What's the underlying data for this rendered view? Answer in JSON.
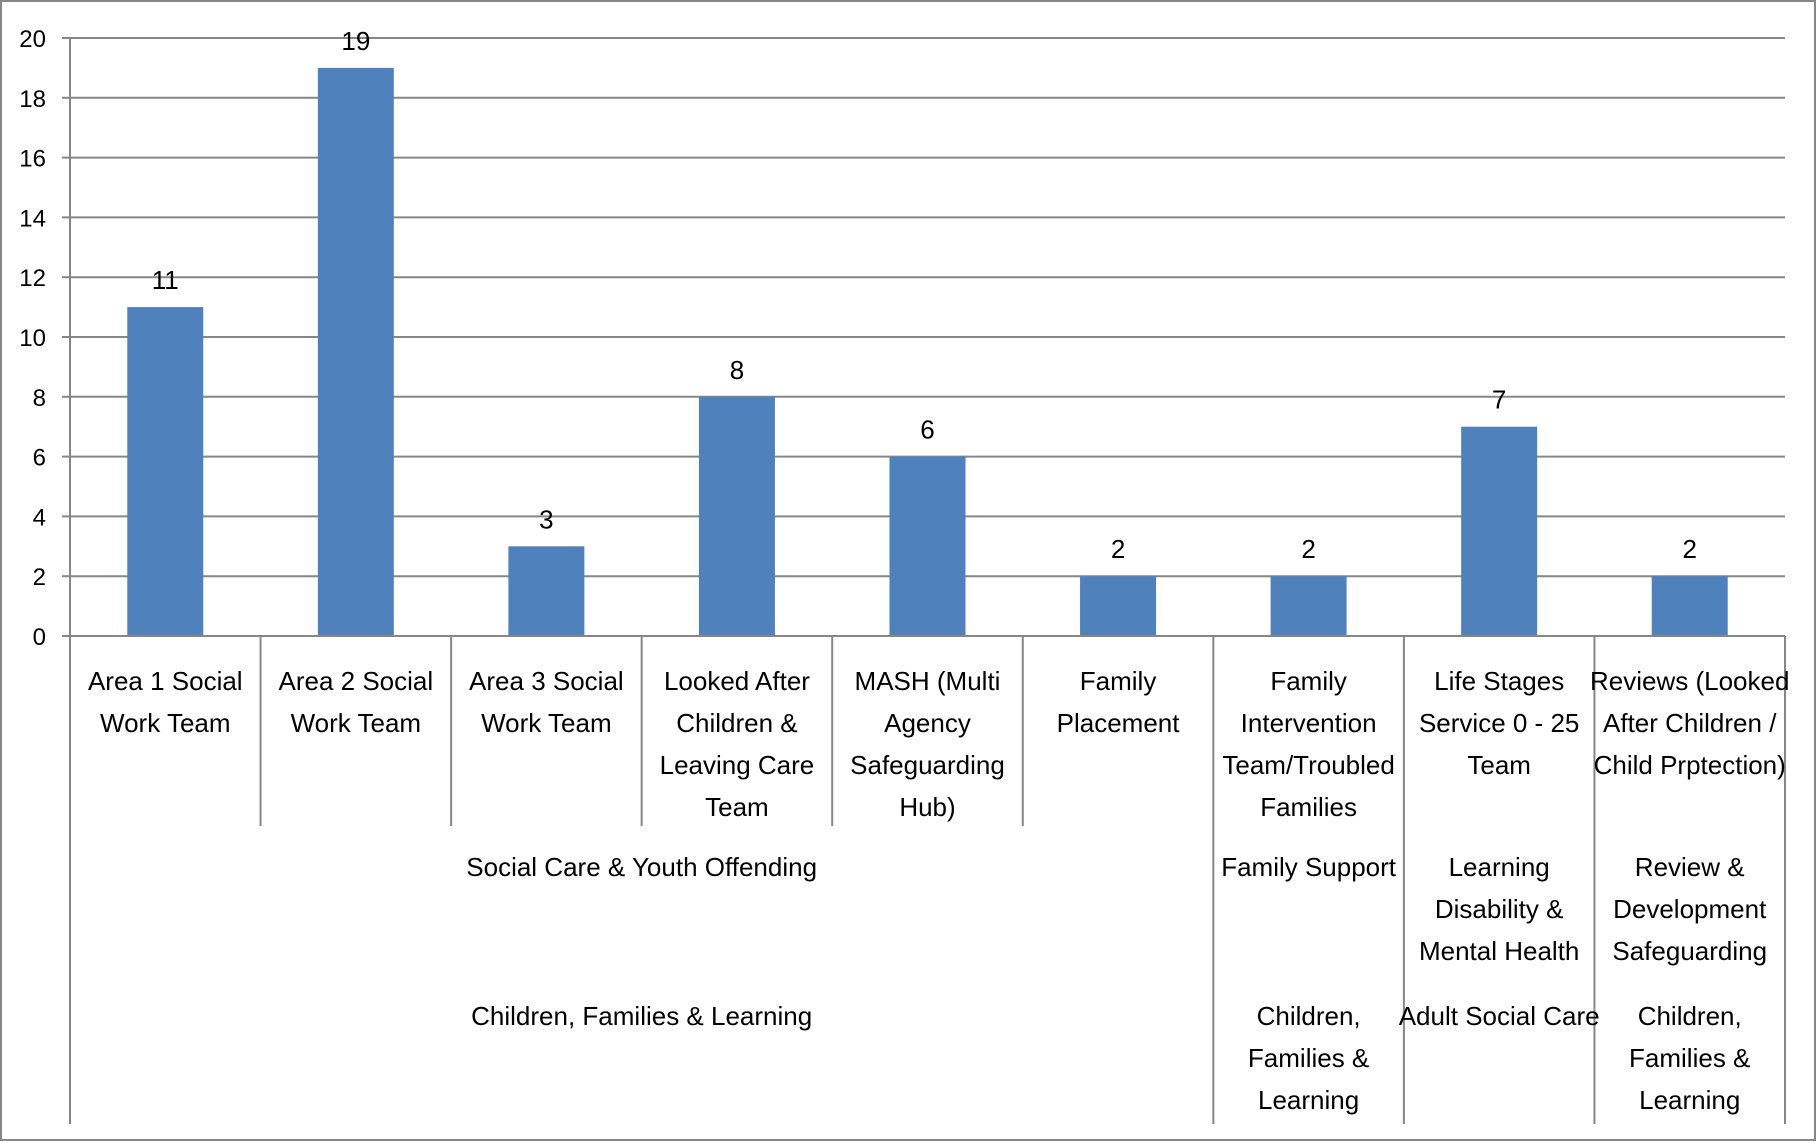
{
  "chart_data": {
    "type": "bar",
    "title": "",
    "xlabel": "",
    "ylabel": "",
    "ylim": [
      0,
      20
    ],
    "yticks": [
      0,
      2,
      4,
      6,
      8,
      10,
      12,
      14,
      16,
      18,
      20
    ],
    "grid": true,
    "legend": "none",
    "bar_color": "#4f81bd",
    "gridline_color": "#868686",
    "categories": [
      "Area 1 Social Work Team",
      "Area 2 Social Work Team",
      "Area 3 Social Work Team",
      "Looked After Children & Leaving Care Team",
      "MASH (Multi Agency Safeguarding Hub)",
      "Family Placement",
      "Family Intervention Team/Troubled Families",
      "Life Stages Service 0 - 25 Team",
      "Reviews (Looked After Children / Child Prptection)"
    ],
    "category_label_lines": [
      [
        "Area 1 Social",
        "Work Team"
      ],
      [
        "Area 2 Social",
        "Work Team"
      ],
      [
        "Area 3 Social",
        "Work Team"
      ],
      [
        "Looked After",
        "Children &",
        "Leaving Care",
        "Team"
      ],
      [
        "MASH (Multi",
        "Agency",
        "Safeguarding",
        "Hub)"
      ],
      [
        "Family",
        "Placement"
      ],
      [
        "Family",
        "Intervention",
        "Team/Troubled",
        "Families"
      ],
      [
        "Life Stages",
        "Service 0 - 25",
        "Team"
      ],
      [
        "Reviews (Looked",
        "After Children /",
        "Child Prptection)"
      ]
    ],
    "values": [
      11,
      19,
      3,
      8,
      6,
      2,
      2,
      7,
      2
    ],
    "data_labels": [
      "11",
      "19",
      "3",
      "8",
      "6",
      "2",
      "2",
      "7",
      "2"
    ],
    "group_levels": [
      {
        "groups": [
          {
            "lines": [
              "Social Care & Youth Offending"
            ],
            "span": [
              0,
              5
            ]
          },
          {
            "lines": [
              "Family Support"
            ],
            "span": [
              6,
              6
            ]
          },
          {
            "lines": [
              "Learning",
              "Disability &",
              "Mental Health"
            ],
            "span": [
              7,
              7
            ]
          },
          {
            "lines": [
              "Review &",
              "Development",
              "Safeguarding"
            ],
            "span": [
              8,
              8
            ]
          }
        ]
      },
      {
        "groups": [
          {
            "lines": [
              "Children, Families & Learning"
            ],
            "span": [
              0,
              5
            ]
          },
          {
            "lines": [
              "Children,",
              "Families &",
              "Learning"
            ],
            "span": [
              6,
              6
            ]
          },
          {
            "lines": [
              "Adult Social Care"
            ],
            "span": [
              7,
              7
            ]
          },
          {
            "lines": [
              "Children,",
              "Families &",
              "Learning"
            ],
            "span": [
              8,
              8
            ]
          }
        ]
      }
    ]
  }
}
